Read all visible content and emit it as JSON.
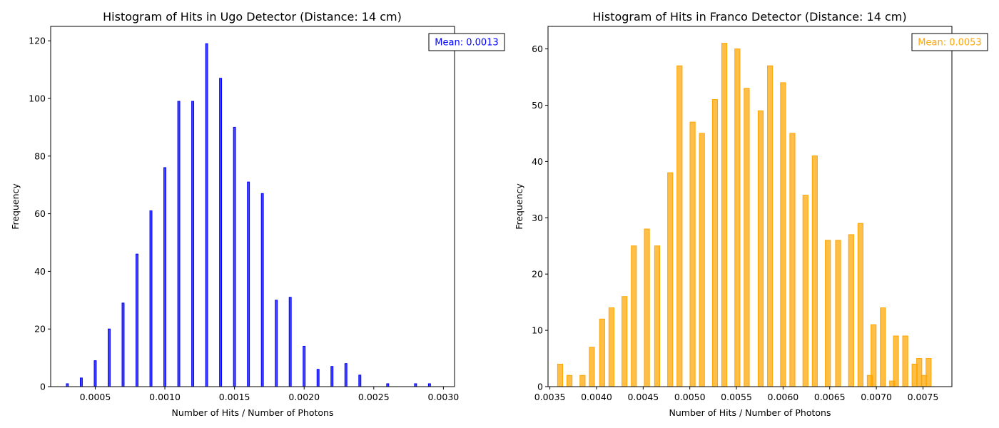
{
  "chart_data": [
    {
      "type": "bar",
      "title": "Histogram of Hits in Ugo Detector (Distance: 14 cm)",
      "xlabel": "Number of Hits / Number of Photons",
      "ylabel": "Frequency",
      "xlim": [
        0.00018,
        0.00308
      ],
      "ylim": [
        0,
        125
      ],
      "xticks": [
        0.0005,
        0.001,
        0.0015,
        0.002,
        0.0025,
        0.003
      ],
      "xtick_labels": [
        "0.0005",
        "0.0010",
        "0.0015",
        "0.0020",
        "0.0025",
        "0.0030"
      ],
      "yticks": [
        0,
        20,
        40,
        60,
        80,
        100,
        120
      ],
      "ytick_labels": [
        "0",
        "20",
        "40",
        "60",
        "80",
        "100",
        "120"
      ],
      "bin_width": 1.5e-05,
      "bar_color": "#0000ff",
      "x": [
        0.0003,
        0.0004,
        0.0005,
        0.0006,
        0.0007,
        0.0008,
        0.0009,
        0.001,
        0.0011,
        0.0012,
        0.0013,
        0.0014,
        0.0015,
        0.0016,
        0.0017,
        0.0018,
        0.0019,
        0.002,
        0.0021,
        0.0022,
        0.0023,
        0.0024,
        0.0026,
        0.0028,
        0.0029
      ],
      "values": [
        1,
        3,
        9,
        20,
        29,
        46,
        61,
        76,
        99,
        99,
        119,
        107,
        90,
        71,
        67,
        30,
        31,
        14,
        6,
        7,
        8,
        4,
        1,
        1,
        1
      ],
      "annotation": {
        "text": "Mean: 0.0013",
        "color": "#0000ff",
        "position": "top-right"
      }
    },
    {
      "type": "bar",
      "title": "Histogram of Hits in Franco Detector (Distance: 14 cm)",
      "xlabel": "Number of Hits / Number of Photons",
      "ylabel": "Frequency",
      "xlim": [
        0.00348,
        0.00781
      ],
      "ylim": [
        0,
        64
      ],
      "xticks": [
        0.0035,
        0.004,
        0.0045,
        0.005,
        0.0055,
        0.006,
        0.0065,
        0.007,
        0.0075
      ],
      "xtick_labels": [
        "0.0035",
        "0.0040",
        "0.0045",
        "0.0050",
        "0.0055",
        "0.0060",
        "0.0065",
        "0.0070",
        "0.0075"
      ],
      "yticks": [
        0,
        10,
        20,
        30,
        40,
        50,
        60
      ],
      "ytick_labels": [
        "0",
        "10",
        "20",
        "30",
        "40",
        "50",
        "60"
      ],
      "bin_width": 5.5e-05,
      "bar_color": "#ffa500",
      "x": [
        0.00361,
        0.00371,
        0.00385,
        0.00395,
        0.00406,
        0.00416,
        0.0043,
        0.0044,
        0.00454,
        0.00465,
        0.00479,
        0.00489,
        0.00503,
        0.00513,
        0.00527,
        0.00537,
        0.00551,
        0.00561,
        0.00576,
        0.00586,
        0.006,
        0.0061,
        0.00624,
        0.00634,
        0.00648,
        0.00659,
        0.00673,
        0.00683,
        0.00697,
        0.00707,
        0.00721,
        0.00731,
        0.00746,
        0.00756,
        0.00401,
        0.00425,
        0.0045,
        0.00474,
        0.00498,
        0.00523,
        0.00547,
        0.00571,
        0.00595,
        0.0062,
        0.00644,
        0.00668,
        0.00693,
        0.00717,
        0.00741,
        0.00751
      ],
      "values": [
        4,
        2,
        2,
        7,
        12,
        14,
        16,
        25,
        28,
        25,
        38,
        57,
        47,
        45,
        51,
        61,
        60,
        53,
        49,
        57,
        54,
        45,
        34,
        41,
        26,
        26,
        27,
        29,
        11,
        14,
        9,
        9,
        5,
        5,
        0,
        0,
        0,
        0,
        0,
        0,
        0,
        0,
        0,
        0,
        0,
        0,
        2,
        1,
        4,
        2
      ],
      "extra_bars": {
        "x": [
          0.00741,
          0.00751,
          0.00761
        ],
        "values": [
          1,
          1,
          1
        ]
      },
      "annotation": {
        "text": "Mean: 0.0053",
        "color": "#ffa500",
        "position": "top-right"
      }
    }
  ]
}
